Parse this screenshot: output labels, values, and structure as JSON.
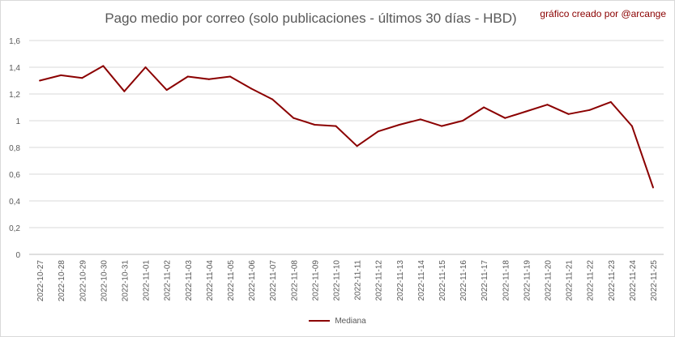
{
  "title": "Pago medio por correo (solo publicaciones - últimos 30 días - HBD)",
  "credit": "gráfico creado por @arcange",
  "chart_data": {
    "type": "line",
    "title": "Pago medio por correo (solo publicaciones - últimos 30 días - HBD)",
    "xlabel": "",
    "ylabel": "",
    "ylim": [
      0,
      1.6
    ],
    "yticks": [
      0,
      0.2,
      0.4,
      0.6,
      0.8,
      1,
      1.2,
      1.4,
      1.6
    ],
    "ytick_labels": [
      "0",
      "0,2",
      "0,4",
      "0,6",
      "0,8",
      "1",
      "1,2",
      "1,4",
      "1,6"
    ],
    "grid": true,
    "legend_position": "bottom",
    "categories": [
      "2022-10-27",
      "2022-10-28",
      "2022-10-29",
      "2022-10-30",
      "2022-10-31",
      "2022-11-01",
      "2022-11-02",
      "2022-11-03",
      "2022-11-04",
      "2022-11-05",
      "2022-11-06",
      "2022-11-07",
      "2022-11-08",
      "2022-11-09",
      "2022-11-10",
      "2022-11-11",
      "2022-11-12",
      "2022-11-13",
      "2022-11-14",
      "2022-11-15",
      "2022-11-16",
      "2022-11-17",
      "2022-11-18",
      "2022-11-19",
      "2022-11-20",
      "2022-11-21",
      "2022-11-22",
      "2022-11-23",
      "2022-11-24",
      "2022-11-25"
    ],
    "series": [
      {
        "name": "Mediana",
        "color": "#8b0000",
        "values": [
          1.3,
          1.34,
          1.32,
          1.41,
          1.22,
          1.4,
          1.23,
          1.33,
          1.31,
          1.33,
          1.24,
          1.16,
          1.02,
          0.97,
          0.96,
          0.81,
          0.92,
          0.97,
          1.01,
          0.96,
          1.0,
          1.1,
          1.02,
          1.07,
          1.12,
          1.05,
          1.08,
          1.14,
          0.96,
          0.5
        ]
      }
    ]
  }
}
